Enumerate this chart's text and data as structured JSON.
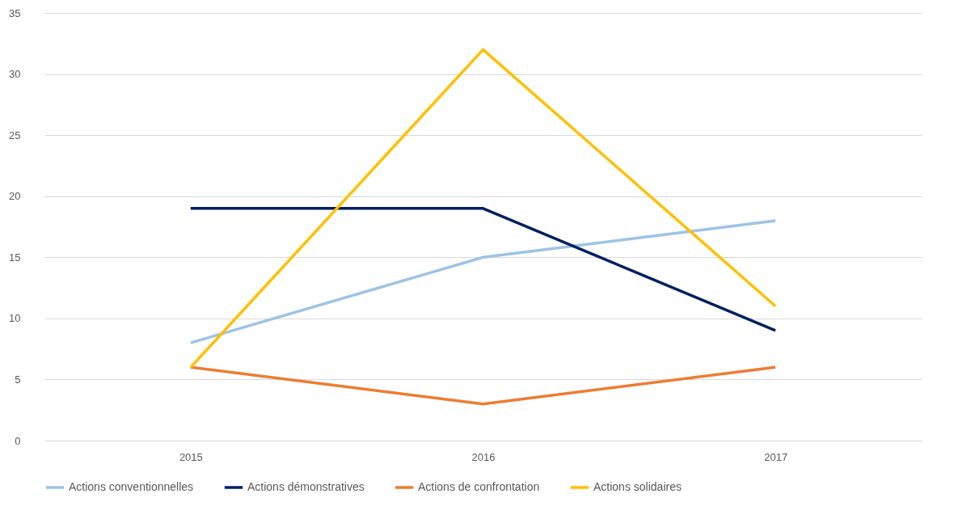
{
  "chart_data": {
    "type": "line",
    "categories": [
      "2015",
      "2016",
      "2017"
    ],
    "series": [
      {
        "name": "Actions conventionnelles",
        "color": "#9dc3e6",
        "values": [
          8,
          15,
          18
        ]
      },
      {
        "name": "Actions démonstratives",
        "color": "#002060",
        "values": [
          19,
          19,
          9
        ]
      },
      {
        "name": "Actions de confrontation",
        "color": "#ed7d31",
        "values": [
          6,
          3,
          6
        ]
      },
      {
        "name": "Actions solidaires",
        "color": "#ffc000",
        "values": [
          6,
          32,
          11
        ]
      }
    ],
    "ylim": [
      0,
      35
    ],
    "yticks": [
      0,
      5,
      10,
      15,
      20,
      25,
      30,
      35
    ],
    "grid": "y",
    "legend": "bottom",
    "marker": "none",
    "line_style": "solid"
  }
}
